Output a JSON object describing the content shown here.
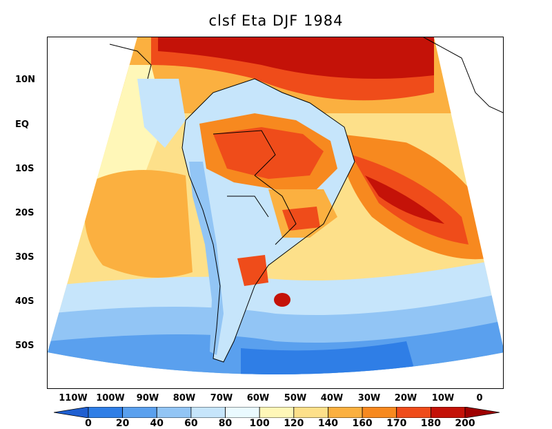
{
  "title": "clsf Eta DJF 1984",
  "axes": {
    "lat_labels": [
      "10N",
      "EQ",
      "10S",
      "20S",
      "30S",
      "40S",
      "50S"
    ],
    "lon_labels": [
      "110W",
      "100W",
      "90W",
      "80W",
      "70W",
      "60W",
      "50W",
      "40W",
      "30W",
      "20W",
      "10W",
      "0"
    ]
  },
  "colorbar": {
    "labels": [
      "0",
      "20",
      "40",
      "60",
      "80",
      "100",
      "120",
      "140",
      "160",
      "170",
      "180",
      "200"
    ],
    "colors": [
      "#1f5fd1",
      "#2f7ee6",
      "#5aa0ee",
      "#92c5f5",
      "#c6e5fb",
      "#eafaff",
      "#fff7b8",
      "#fde08a",
      "#fbb040",
      "#f7891f",
      "#ef4c1a",
      "#c41208",
      "#9e0000"
    ]
  }
}
